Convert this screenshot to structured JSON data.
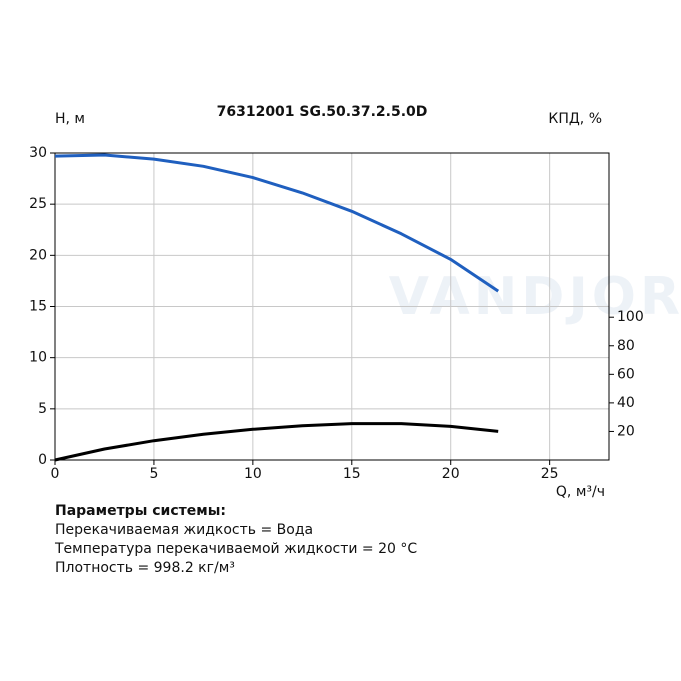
{
  "chart_data": {
    "type": "line",
    "title": "76312001 SG.50.37.2.5.0D",
    "y_label": "H, м",
    "y2_label": "КПД, %",
    "x_label": "Q, м³/ч",
    "watermark": "VANDJORD",
    "x": [
      0,
      2.5,
      5,
      7.5,
      10,
      12.5,
      15,
      17.5,
      20,
      22.4
    ],
    "series": [
      {
        "color": "#1f5fbf",
        "values": [
          29.7,
          29.8,
          29.4,
          28.7,
          27.6,
          26.1,
          24.3,
          22.1,
          19.6,
          16.5
        ]
      },
      {
        "color": "#000000",
        "axis": "y2",
        "values": [
          0,
          7.7,
          13.5,
          18,
          21.5,
          24,
          25.5,
          25.5,
          23.5,
          20
        ]
      }
    ],
    "xlim": [
      0,
      28
    ],
    "xticks": [
      0,
      5,
      10,
      15,
      20,
      25
    ],
    "ylim": [
      0,
      30
    ],
    "yticks": [
      0,
      5,
      10,
      15,
      20,
      25,
      30
    ],
    "y2lim": [
      0,
      215
    ],
    "y2ticks": [
      20,
      40,
      60,
      80,
      100
    ],
    "grid": true
  },
  "parameters": {
    "title": "Параметры системы:",
    "lines": [
      "Перекачиваемая жидкость = Вода",
      "Температура перекачиваемой жидкости = 20 °C",
      "Плотность = 998.2 кг/м³"
    ]
  }
}
